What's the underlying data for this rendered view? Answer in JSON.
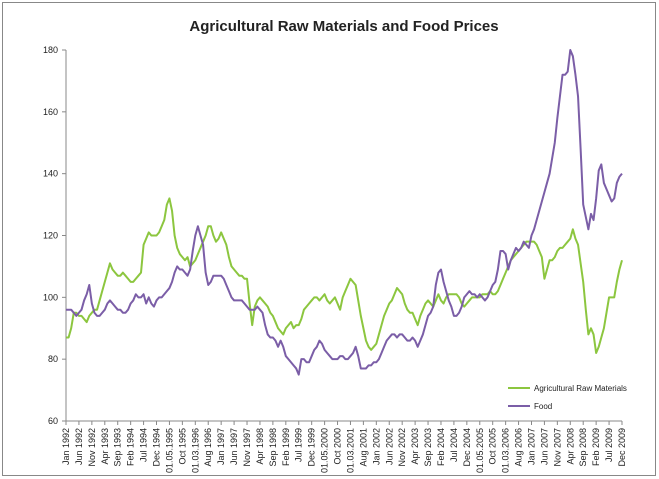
{
  "chart_data": {
    "type": "line",
    "title": "Agricultural Raw Materials and Food Prices",
    "categories": [
      "Jan 1992",
      null,
      null,
      null,
      null,
      "Jun 1992",
      null,
      null,
      null,
      null,
      "Nov 1992",
      null,
      null,
      null,
      null,
      "Apr 1993",
      null,
      null,
      null,
      null,
      "Sep 1993",
      null,
      null,
      null,
      null,
      "Feb 1994",
      null,
      null,
      null,
      null,
      "Jul 1994",
      null,
      null,
      null,
      null,
      "Dec 1994",
      null,
      null,
      null,
      null,
      "01.05.1995",
      null,
      null,
      null,
      null,
      "Oct 1995",
      null,
      null,
      null,
      null,
      "01.03.1996",
      null,
      null,
      null,
      null,
      "Aug 1996",
      null,
      null,
      null,
      null,
      "Jan 1997",
      null,
      null,
      null,
      null,
      "Jun 1997",
      null,
      null,
      null,
      null,
      "Nov 1997",
      null,
      null,
      null,
      null,
      "Apr 1998",
      null,
      null,
      null,
      null,
      "Sep 1998",
      null,
      null,
      null,
      null,
      "Feb 1999",
      null,
      null,
      null,
      null,
      "Jul 1999",
      null,
      null,
      null,
      null,
      "Dec 1999",
      null,
      null,
      null,
      null,
      "01.05.2000",
      null,
      null,
      null,
      null,
      "Oct 2000",
      null,
      null,
      null,
      null,
      "01.03.2001",
      null,
      null,
      null,
      null,
      "Aug 2001",
      null,
      null,
      null,
      null,
      "Jan 2002",
      null,
      null,
      null,
      null,
      "Jun 2002",
      null,
      null,
      null,
      null,
      "Nov 2002",
      null,
      null,
      null,
      null,
      "Apr 2003",
      null,
      null,
      null,
      null,
      "Sep 2003",
      null,
      null,
      null,
      null,
      "Feb 2004",
      null,
      null,
      null,
      null,
      "Jul 2004",
      null,
      null,
      null,
      null,
      "Dec 2004",
      null,
      null,
      null,
      null,
      "01.05.2005",
      null,
      null,
      null,
      null,
      "Oct 2005",
      null,
      null,
      null,
      null,
      "01.03.2006",
      null,
      null,
      null,
      null,
      "Aug 2006",
      null,
      null,
      null,
      null,
      "Jan 2007",
      null,
      null,
      null,
      null,
      "Jun 2007",
      null,
      null,
      null,
      null,
      "Nov 2007",
      null,
      null,
      null,
      null,
      "Apr 2008",
      null,
      null,
      null,
      null,
      "Sep 2008",
      null,
      null,
      null,
      null,
      "Feb 2009",
      null,
      null,
      null,
      null,
      "Jul 2009",
      null,
      null,
      null,
      null,
      "Dec 2009"
    ],
    "series": [
      {
        "name": "Agricultural Raw Materials",
        "color": "#8cc63f",
        "values": [
          87,
          87,
          90,
          95,
          95,
          94,
          94,
          93,
          92,
          94,
          95,
          96,
          96,
          99,
          102,
          105,
          108,
          111,
          109,
          108,
          107,
          107,
          108,
          107,
          106,
          105,
          105,
          106,
          107,
          108,
          117,
          119,
          121,
          120,
          120,
          120,
          121,
          123,
          125,
          130,
          132,
          128,
          120,
          116,
          114,
          113,
          112,
          113,
          110,
          111,
          112,
          114,
          116,
          118,
          120,
          123,
          123,
          120,
          118,
          119,
          121,
          119,
          117,
          113,
          110,
          109,
          108,
          107,
          107,
          106,
          106,
          98,
          91,
          97,
          99,
          100,
          99,
          98,
          97,
          95,
          94,
          92,
          90,
          89,
          88,
          90,
          91,
          92,
          90,
          91,
          91,
          93,
          96,
          97,
          98,
          99,
          100,
          100,
          99,
          100,
          101,
          99,
          98,
          99,
          100,
          98,
          96,
          100,
          102,
          104,
          106,
          105,
          104,
          99,
          94,
          90,
          86,
          84,
          83,
          84,
          85,
          88,
          91,
          94,
          96,
          98,
          99,
          101,
          103,
          102,
          101,
          98,
          96,
          95,
          95,
          93,
          91,
          94,
          96,
          98,
          99,
          98,
          97,
          99,
          101,
          99,
          98,
          100,
          101,
          101,
          101,
          101,
          100,
          98,
          97,
          98,
          99,
          100,
          100,
          100,
          100,
          101,
          101,
          101,
          102,
          101,
          101,
          102,
          104,
          106,
          108,
          110,
          112,
          113,
          114,
          115,
          116,
          117,
          118,
          118,
          118,
          118,
          117,
          115,
          113,
          106,
          109,
          112,
          112,
          113,
          115,
          116,
          116,
          117,
          118,
          119,
          122,
          119,
          117,
          111,
          105,
          96,
          88,
          90,
          88,
          82,
          84,
          87,
          90,
          95,
          100,
          100,
          100,
          105,
          109,
          112
        ]
      },
      {
        "name": "Food",
        "color": "#7b5ea7",
        "values": [
          96,
          96,
          96,
          95,
          94,
          95,
          96,
          99,
          101,
          104,
          98,
          95,
          94,
          94,
          95,
          96,
          98,
          99,
          98,
          97,
          96,
          96,
          95,
          95,
          96,
          98,
          99,
          101,
          100,
          100,
          101,
          98,
          100,
          98,
          97,
          99,
          100,
          100,
          101,
          102,
          103,
          105,
          108,
          110,
          109,
          109,
          108,
          107,
          109,
          115,
          120,
          123,
          120,
          117,
          108,
          104,
          105,
          107,
          107,
          107,
          107,
          106,
          104,
          102,
          100,
          99,
          99,
          99,
          99,
          98,
          97,
          96,
          96,
          96,
          97,
          96,
          95,
          91,
          88,
          87,
          87,
          86,
          84,
          86,
          84,
          81,
          80,
          79,
          78,
          77,
          75,
          80,
          80,
          79,
          79,
          81,
          83,
          84,
          86,
          85,
          83,
          82,
          81,
          80,
          80,
          80,
          81,
          81,
          80,
          80,
          81,
          82,
          84,
          81,
          77,
          77,
          77,
          78,
          78,
          79,
          79,
          80,
          82,
          84,
          86,
          87,
          88,
          88,
          87,
          88,
          88,
          87,
          86,
          86,
          87,
          86,
          84,
          86,
          88,
          91,
          94,
          95,
          97,
          104,
          108,
          109,
          105,
          102,
          99,
          97,
          94,
          94,
          95,
          97,
          100,
          101,
          102,
          101,
          101,
          100,
          101,
          100,
          99,
          100,
          102,
          104,
          105,
          109,
          115,
          115,
          114,
          109,
          112,
          114,
          116,
          115,
          116,
          118,
          117,
          116,
          120,
          122,
          125,
          128,
          131,
          134,
          137,
          140,
          145,
          150,
          158,
          165,
          172,
          172,
          173,
          180,
          178,
          172,
          165,
          148,
          130,
          126,
          122,
          127,
          125,
          132,
          141,
          143,
          137,
          135,
          133,
          131,
          132,
          137,
          139,
          140
        ]
      }
    ],
    "ylim": [
      60,
      180
    ],
    "yticks": [
      60,
      80,
      100,
      120,
      140,
      160,
      180
    ],
    "grid": false,
    "legend": "lower right"
  }
}
